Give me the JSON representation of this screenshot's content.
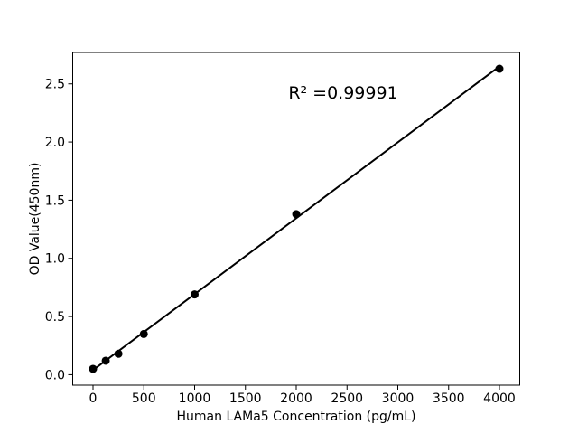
{
  "figure": {
    "background_color": "#ffffff",
    "foreground_color": "#000000"
  },
  "chart_data": {
    "type": "scatter",
    "title": "",
    "xlabel": "Human LAMa5 Concentration (pg/mL)",
    "ylabel": "OD Value(450nm)",
    "annotation": "R² =0.99991",
    "r_squared": 0.99991,
    "x": [
      0,
      125,
      250,
      500,
      1000,
      2000,
      4000
    ],
    "y": [
      0.05,
      0.12,
      0.18,
      0.35,
      0.69,
      1.38,
      2.63
    ],
    "trendline": {
      "x": [
        0,
        4000
      ],
      "y": [
        0.04,
        2.65
      ]
    },
    "xlim": [
      -200,
      4200
    ],
    "ylim": [
      -0.09,
      2.77
    ],
    "xticks": [
      "0",
      "500",
      "1000",
      "1500",
      "2000",
      "2500",
      "3000",
      "3500",
      "4000"
    ],
    "yticks": [
      "0.0",
      "0.5",
      "1.0",
      "1.5",
      "2.0",
      "2.5"
    ],
    "grid": false,
    "legend": null,
    "marker_color": "#000000",
    "line_color": "#000000"
  }
}
